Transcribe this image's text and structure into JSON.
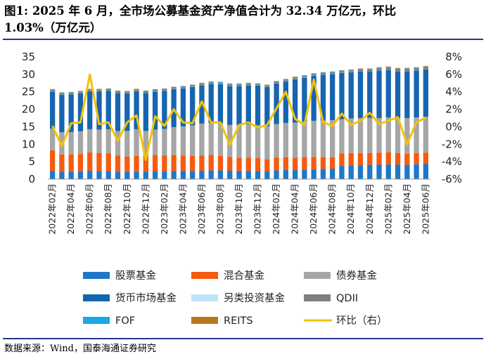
{
  "title_line1": "图1:  2025 年 6 月，全市场公募基金资产净值合计为 32.34 万亿元，环比",
  "title_line2": "1.03%（万亿元）",
  "source": "数据来源：Wind，国泰海通证券研究",
  "chart_data": {
    "type": "bar",
    "stacked": true,
    "categories": [
      "2022年02月",
      "2022年03月",
      "2022年04月",
      "2022年05月",
      "2022年06月",
      "2022年07月",
      "2022年08月",
      "2022年09月",
      "2022年10月",
      "2022年11月",
      "2022年12月",
      "2023年01月",
      "2023年02月",
      "2023年03月",
      "2023年04月",
      "2023年05月",
      "2023年06月",
      "2023年07月",
      "2023年08月",
      "2023年09月",
      "2023年10月",
      "2023年11月",
      "2023年12月",
      "2024年01月",
      "2024年02月",
      "2024年03月",
      "2024年04月",
      "2024年05月",
      "2024年06月",
      "2024年07月",
      "2024年08月",
      "2024年09月",
      "2024年10月",
      "2024年11月",
      "2024年12月",
      "2025年01月",
      "2025年02月",
      "2025年03月",
      "2025年04月",
      "2025年05月",
      "2025年06月"
    ],
    "xtick_labels": [
      "2022年02月",
      "2022年04月",
      "2022年06月",
      "2022年08月",
      "2022年10月",
      "2022年12月",
      "2023年02月",
      "2023年04月",
      "2023年06月",
      "2023年08月",
      "2023年10月",
      "2023年12月",
      "2024年02月",
      "2024年04月",
      "2024年06月",
      "2024年08月",
      "2024年10月",
      "2024年12月",
      "2025年02月",
      "2025年04月",
      "2025年06月"
    ],
    "left_axis": {
      "ylim": [
        0,
        35
      ],
      "ticks": [
        0,
        5,
        10,
        15,
        20,
        25,
        30,
        35
      ]
    },
    "right_axis": {
      "ylim": [
        -6,
        8
      ],
      "ticks": [
        "-6%",
        "-4%",
        "-2%",
        "0%",
        "2%",
        "4%",
        "6%",
        "8%"
      ]
    },
    "series": [
      {
        "name": "股票基金",
        "color": "#1f77c8",
        "values": [
          2.3,
          2.1,
          2.1,
          2.2,
          2.4,
          2.3,
          2.3,
          2.1,
          2.0,
          2.1,
          2.1,
          2.2,
          2.2,
          2.3,
          2.3,
          2.3,
          2.4,
          2.5,
          2.5,
          2.4,
          2.3,
          2.3,
          2.3,
          2.2,
          2.5,
          2.6,
          2.6,
          2.7,
          2.8,
          2.9,
          3.0,
          3.8,
          3.9,
          4.0,
          4.1,
          4.2,
          4.2,
          4.2,
          4.1,
          4.3,
          4.4
        ]
      },
      {
        "name": "混合基金",
        "color": "#f55b0f",
        "values": [
          6.0,
          5.0,
          5.0,
          5.0,
          5.3,
          5.2,
          5.1,
          4.7,
          4.5,
          4.6,
          4.6,
          4.7,
          4.6,
          4.6,
          4.5,
          4.4,
          4.4,
          4.4,
          4.2,
          4.0,
          3.9,
          3.9,
          3.8,
          3.5,
          3.7,
          3.7,
          3.6,
          3.6,
          3.5,
          3.4,
          3.3,
          3.6,
          3.6,
          3.5,
          3.4,
          3.4,
          3.5,
          3.3,
          3.2,
          3.2,
          3.2
        ]
      },
      {
        "name": "债券基金",
        "color": "#a6a6a6",
        "values": [
          6.2,
          6.3,
          6.4,
          6.5,
          6.6,
          6.7,
          6.9,
          7.0,
          7.3,
          7.6,
          7.1,
          7.3,
          7.6,
          8.0,
          8.3,
          8.7,
          9.1,
          9.2,
          9.3,
          9.1,
          9.3,
          9.5,
          9.4,
          9.4,
          9.6,
          9.8,
          10.0,
          10.2,
          10.4,
          10.5,
          10.6,
          9.8,
          9.9,
          10.0,
          10.1,
          9.9,
          10.0,
          10.0,
          10.2,
          10.2,
          10.3
        ]
      },
      {
        "name": "货币市场基金",
        "color": "#1565b0",
        "values": [
          10.6,
          10.8,
          10.8,
          10.9,
          10.9,
          11.0,
          11.0,
          10.9,
          10.8,
          10.9,
          10.9,
          10.9,
          10.9,
          10.9,
          10.9,
          11.0,
          11.0,
          11.2,
          11.2,
          11.2,
          11.2,
          11.2,
          11.3,
          11.3,
          11.6,
          11.9,
          12.4,
          12.5,
          12.9,
          13.1,
          13.2,
          13.2,
          13.2,
          13.4,
          13.3,
          13.6,
          13.6,
          13.4,
          13.4,
          13.4,
          13.5
        ]
      },
      {
        "name": "另类投资基金",
        "color": "#bfe3f7",
        "values": [
          0.05,
          0.05,
          0.05,
          0.05,
          0.05,
          0.05,
          0.05,
          0.05,
          0.05,
          0.05,
          0.05,
          0.05,
          0.05,
          0.05,
          0.05,
          0.05,
          0.05,
          0.05,
          0.05,
          0.05,
          0.05,
          0.05,
          0.05,
          0.05,
          0.05,
          0.05,
          0.05,
          0.05,
          0.05,
          0.05,
          0.05,
          0.05,
          0.05,
          0.05,
          0.05,
          0.05,
          0.05,
          0.05,
          0.05,
          0.05,
          0.05
        ]
      },
      {
        "name": "QDII",
        "color": "#7f7f7f",
        "values": [
          0.35,
          0.3,
          0.3,
          0.3,
          0.3,
          0.3,
          0.3,
          0.3,
          0.3,
          0.3,
          0.3,
          0.3,
          0.3,
          0.3,
          0.3,
          0.3,
          0.35,
          0.35,
          0.35,
          0.35,
          0.35,
          0.35,
          0.35,
          0.35,
          0.4,
          0.4,
          0.45,
          0.45,
          0.45,
          0.45,
          0.45,
          0.5,
          0.5,
          0.5,
          0.5,
          0.55,
          0.55,
          0.55,
          0.55,
          0.55,
          0.6
        ]
      },
      {
        "name": "FOF",
        "color": "#1aa8e6",
        "values": [
          0.2,
          0.2,
          0.2,
          0.2,
          0.2,
          0.2,
          0.2,
          0.2,
          0.2,
          0.2,
          0.2,
          0.2,
          0.2,
          0.2,
          0.2,
          0.2,
          0.2,
          0.2,
          0.2,
          0.2,
          0.2,
          0.2,
          0.15,
          0.15,
          0.15,
          0.15,
          0.15,
          0.15,
          0.15,
          0.15,
          0.15,
          0.15,
          0.15,
          0.15,
          0.15,
          0.15,
          0.15,
          0.15,
          0.15,
          0.15,
          0.15
        ]
      },
      {
        "name": "REITS",
        "color": "#b5791a",
        "values": [
          0.1,
          0.1,
          0.1,
          0.1,
          0.1,
          0.1,
          0.1,
          0.1,
          0.1,
          0.1,
          0.1,
          0.1,
          0.1,
          0.1,
          0.1,
          0.1,
          0.1,
          0.1,
          0.1,
          0.1,
          0.1,
          0.1,
          0.1,
          0.1,
          0.1,
          0.1,
          0.1,
          0.1,
          0.1,
          0.1,
          0.1,
          0.1,
          0.1,
          0.1,
          0.1,
          0.2,
          0.2,
          0.2,
          0.2,
          0.2,
          0.2
        ]
      }
    ],
    "line": {
      "name": "环比（右）",
      "color": "#f2c20b",
      "axis": "right",
      "unit": "%",
      "values": [
        0.1,
        -2.2,
        0.4,
        0.5,
        6.0,
        0.3,
        0.5,
        -1.6,
        0.5,
        1.3,
        -3.8,
        1.2,
        0.1,
        2.0,
        0.5,
        0.4,
        2.9,
        0.5,
        0.5,
        -2.1,
        0.2,
        0.5,
        -0.1,
        0.2,
        2.1,
        4.0,
        0.9,
        0.2,
        5.4,
        0.5,
        0.1,
        1.5,
        0.2,
        0.7,
        1.6,
        0.3,
        0.7,
        1.1,
        -2.0,
        0.5,
        1.03
      ]
    },
    "legend": [
      {
        "name": "股票基金",
        "type": "bar",
        "color": "#1f77c8"
      },
      {
        "name": "混合基金",
        "type": "bar",
        "color": "#f55b0f"
      },
      {
        "name": "债券基金",
        "type": "bar",
        "color": "#a6a6a6"
      },
      {
        "name": "货币市场基金",
        "type": "bar",
        "color": "#1565b0"
      },
      {
        "name": "另类投资基金",
        "type": "bar",
        "color": "#bfe3f7"
      },
      {
        "name": "QDII",
        "type": "bar",
        "color": "#7f7f7f"
      },
      {
        "name": "FOF",
        "type": "bar",
        "color": "#1aa8e6"
      },
      {
        "name": "REITS",
        "type": "bar",
        "color": "#b5791a"
      },
      {
        "name": "环比（右）",
        "type": "line",
        "color": "#f2c20b"
      }
    ],
    "grid": false,
    "legend_position": "bottom"
  }
}
